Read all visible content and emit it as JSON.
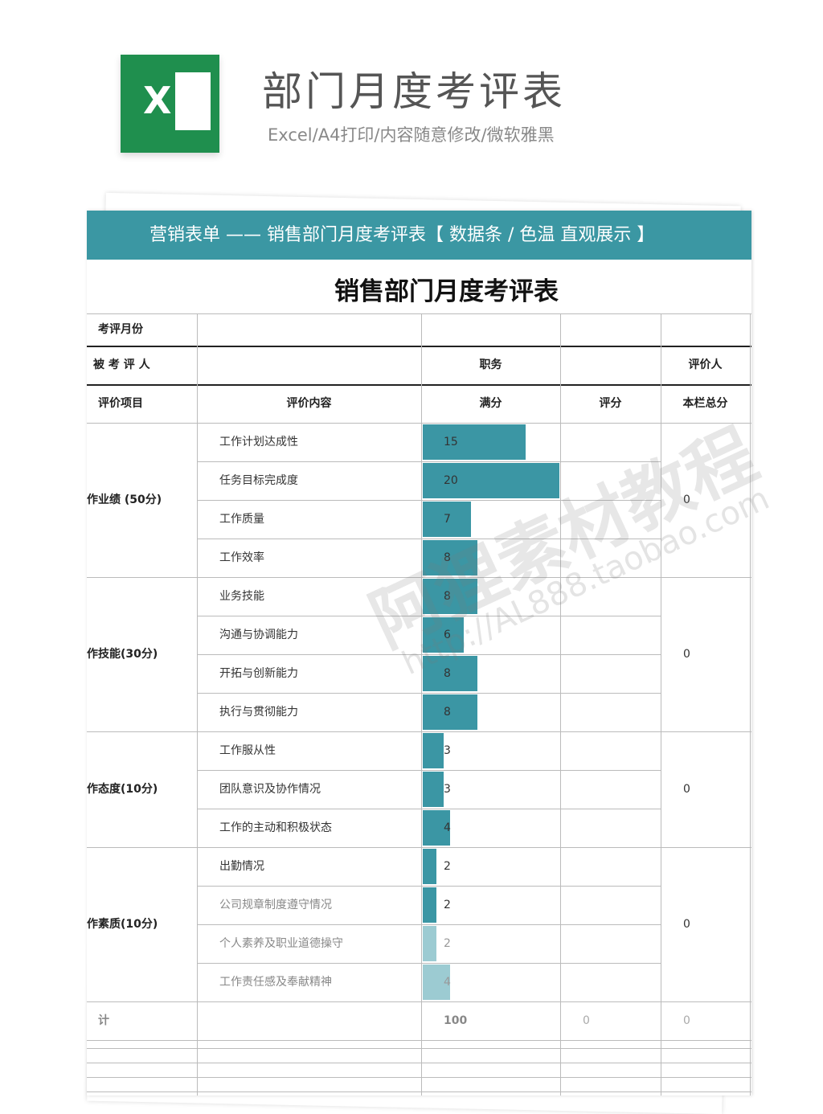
{
  "header": {
    "icon_letter": "X",
    "title": "部门月度考评表",
    "subtitle": "Excel/A4打印/内容随意修改/微软雅黑"
  },
  "banner": "营销表单 —— 销售部门月度考评表【 数据条 / 色温 直观展示 】",
  "sheet": {
    "title": "销售部门月度考评表",
    "month_label": "考评月份",
    "person_label": "被 考 评 人",
    "position_label": "职务",
    "evaluator_label": "评价人",
    "columns": [
      "评价项目",
      "评价内容",
      "满分",
      "评分",
      "本栏总分"
    ],
    "groups": [
      {
        "name": "作业绩 (50分)",
        "total": 0,
        "items": [
          {
            "name": "工作计划达成性",
            "max": 15
          },
          {
            "name": "任务目标完成度",
            "max": 20
          },
          {
            "name": "工作质量",
            "max": 7
          },
          {
            "name": "工作效率",
            "max": 8
          }
        ]
      },
      {
        "name": "作技能(30分)",
        "total": 0,
        "items": [
          {
            "name": "业务技能",
            "max": 8
          },
          {
            "name": "沟通与协调能力",
            "max": 6
          },
          {
            "name": "开拓与创新能力",
            "max": 8
          },
          {
            "name": "执行与贯彻能力",
            "max": 8
          }
        ]
      },
      {
        "name": "作态度(10分)",
        "total": 0,
        "items": [
          {
            "name": "工作服从性",
            "max": 3
          },
          {
            "name": "团队意识及协作情况",
            "max": 3
          },
          {
            "name": "工作的主动和积极状态",
            "max": 4
          }
        ]
      },
      {
        "name": "作素质(10分)",
        "total": 0,
        "items": [
          {
            "name": "出勤情况",
            "max": 2
          },
          {
            "name": "公司规章制度遵守情况",
            "max": 2
          },
          {
            "name": "个人素养及职业道德操守",
            "max": 2
          },
          {
            "name": "工作责任感及奉献精神",
            "max": 4
          }
        ]
      }
    ],
    "total": {
      "label": "计",
      "max": 100,
      "score": 0,
      "sum": 0
    }
  },
  "watermark": [
    "阿狸素材教程",
    "http://AL888.taobao.com"
  ]
}
